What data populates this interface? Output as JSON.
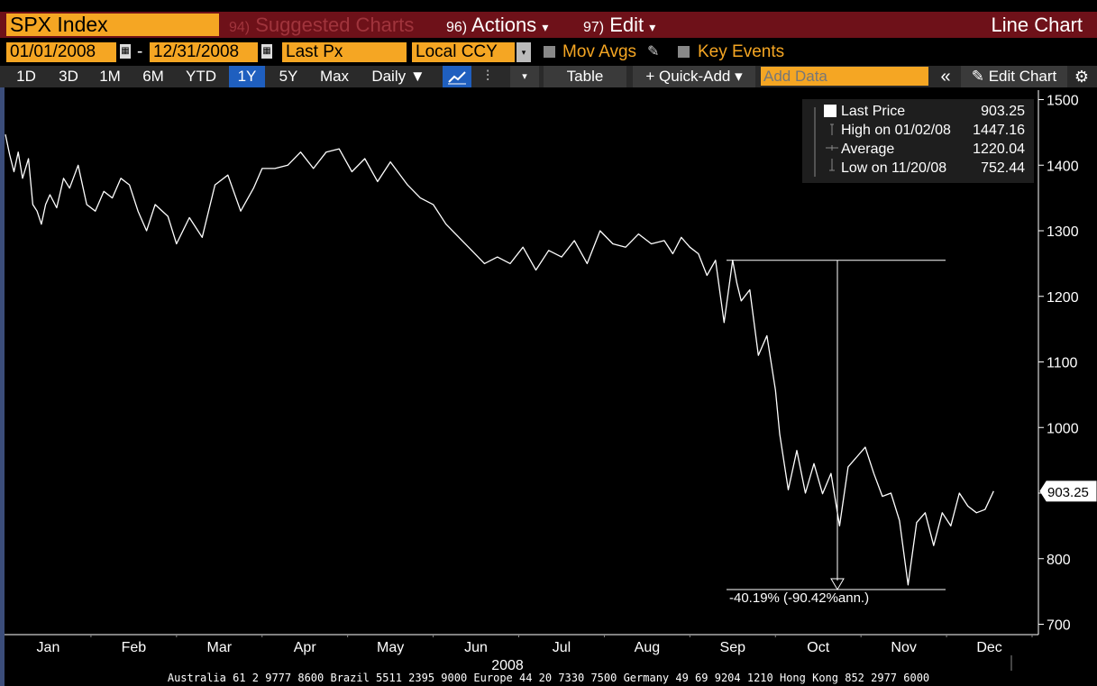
{
  "toolbar": {
    "ticker": "SPX Index",
    "menu_suggested_num": "94)",
    "menu_suggested": "Suggested Charts",
    "menu_actions_num": "96)",
    "menu_actions": "Actions",
    "menu_edit_num": "97)",
    "menu_edit": "Edit",
    "chart_type": "Line Chart",
    "dropdown_arrow": "▾"
  },
  "settings": {
    "start_date": "01/01/2008",
    "date_separator": "-",
    "end_date": "12/31/2008",
    "field": "Last Px",
    "currency": "Local CCY",
    "mov_avgs": "Mov Avgs",
    "key_events": "Key Events"
  },
  "ranges": {
    "buttons": [
      "1D",
      "3D",
      "1M",
      "6M",
      "YTD",
      "1Y",
      "5Y",
      "Max"
    ],
    "active": "1Y",
    "frequency": "Daily ▼",
    "table": "Table",
    "quick_add": "+ Quick-Add ▾",
    "add_data_placeholder": "Add Data",
    "collapse": "«",
    "edit_chart": "Edit Chart",
    "gear": "⚙"
  },
  "legend": {
    "rows": [
      {
        "label": "Last Price",
        "value": "903.25"
      },
      {
        "label": "High on 01/02/08",
        "value": "1447.16"
      },
      {
        "label": "Average",
        "value": "1220.04"
      },
      {
        "label": "Low on 11/20/08",
        "value": "752.44"
      }
    ]
  },
  "annotation": {
    "text": "-40.19% (-90.42%ann.)",
    "from_value": 1255,
    "to_value": 753
  },
  "last_price_tag": "903.25",
  "footer": "Australia 61 2 9777 8600 Brazil 5511 2395 9000 Europe 44 20 7330 7500 Germany 49 69 9204 1210 Hong Kong 852 2977 6000",
  "colors": {
    "accent_orange": "#f5a623",
    "menu_red": "#6e1119",
    "active_blue": "#1f5fbf"
  },
  "chart_data": {
    "type": "line",
    "title": "",
    "xlabel": "2008",
    "ylabel": "",
    "x_ticks": [
      "Jan",
      "Feb",
      "Mar",
      "Apr",
      "May",
      "Jun",
      "Jul",
      "Aug",
      "Sep",
      "Oct",
      "Nov",
      "Dec"
    ],
    "y_ticks": [
      700,
      800,
      900,
      1000,
      1100,
      1200,
      1300,
      1400,
      1500
    ],
    "ylim": [
      690,
      1510
    ],
    "xlim": [
      0,
      12
    ],
    "grid": false,
    "legend_position": "top-right",
    "series": [
      {
        "name": "Last Price",
        "x": [
          0.0,
          0.05,
          0.1,
          0.15,
          0.2,
          0.27,
          0.32,
          0.37,
          0.42,
          0.47,
          0.52,
          0.6,
          0.68,
          0.75,
          0.85,
          0.95,
          1.05,
          1.15,
          1.25,
          1.35,
          1.45,
          1.55,
          1.65,
          1.75,
          1.9,
          2.0,
          2.15,
          2.3,
          2.45,
          2.6,
          2.75,
          2.9,
          3.0,
          3.15,
          3.3,
          3.45,
          3.6,
          3.75,
          3.9,
          4.05,
          4.2,
          4.35,
          4.5,
          4.7,
          4.85,
          5.0,
          5.15,
          5.3,
          5.45,
          5.6,
          5.75,
          5.9,
          6.05,
          6.2,
          6.35,
          6.5,
          6.65,
          6.8,
          6.95,
          7.1,
          7.25,
          7.4,
          7.55,
          7.7,
          7.8,
          7.9,
          8.0,
          8.1,
          8.2,
          8.3,
          8.4,
          8.5,
          8.55,
          8.6,
          8.7,
          8.8,
          8.9,
          9.0,
          9.05,
          9.15,
          9.25,
          9.35,
          9.45,
          9.55,
          9.65,
          9.75,
          9.85,
          9.95,
          10.05,
          10.15,
          10.25,
          10.35,
          10.45,
          10.55,
          10.65,
          10.75,
          10.85,
          10.95,
          11.05,
          11.15,
          11.25,
          11.35,
          11.45,
          11.55
        ],
        "values": [
          1447,
          1416,
          1390,
          1420,
          1380,
          1410,
          1340,
          1330,
          1310,
          1340,
          1355,
          1335,
          1380,
          1365,
          1400,
          1340,
          1330,
          1360,
          1350,
          1380,
          1370,
          1330,
          1300,
          1340,
          1322,
          1280,
          1320,
          1290,
          1370,
          1385,
          1330,
          1365,
          1395,
          1395,
          1400,
          1420,
          1395,
          1420,
          1425,
          1390,
          1410,
          1375,
          1405,
          1370,
          1350,
          1340,
          1310,
          1290,
          1270,
          1250,
          1260,
          1250,
          1275,
          1240,
          1270,
          1260,
          1285,
          1250,
          1300,
          1280,
          1275,
          1295,
          1280,
          1285,
          1265,
          1290,
          1275,
          1265,
          1232,
          1255,
          1160,
          1255,
          1220,
          1193,
          1210,
          1110,
          1140,
          1057,
          990,
          905,
          965,
          900,
          945,
          899,
          930,
          850,
          940,
          955,
          970,
          930,
          895,
          900,
          858,
          760,
          855,
          870,
          820,
          870,
          850,
          900,
          880,
          870,
          875,
          903
        ]
      }
    ]
  }
}
